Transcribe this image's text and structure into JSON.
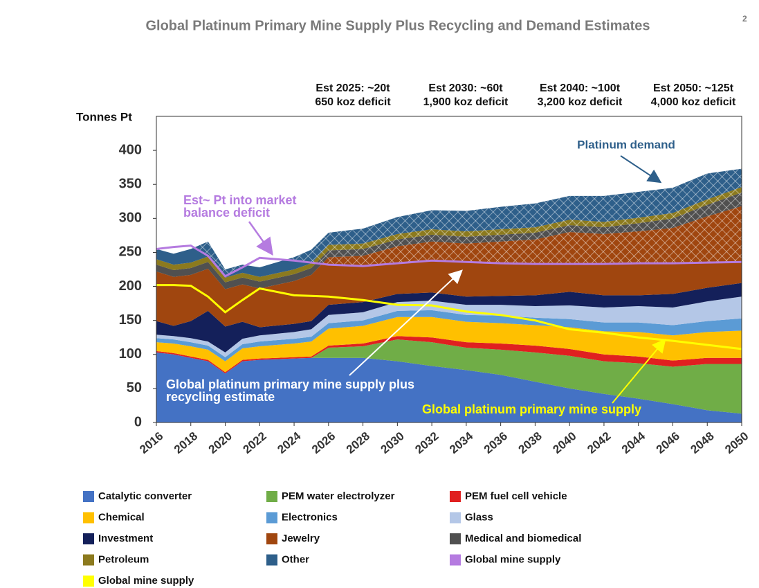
{
  "chart_data": {
    "type": "stacked_area",
    "title": "Global Platinum Primary Mine Supply Plus Recycling and Demand Estimates",
    "title_superscript": "2",
    "y_axis_label": "Tonnes Pt",
    "x": [
      2016,
      2017,
      2018,
      2019,
      2020,
      2021,
      2022,
      2024,
      2025,
      2026,
      2028,
      2030,
      2032,
      2034,
      2036,
      2038,
      2040,
      2042,
      2044,
      2046,
      2048,
      2050
    ],
    "xlim": [
      2016,
      2050
    ],
    "xticks": [
      2016,
      2018,
      2020,
      2022,
      2024,
      2026,
      2028,
      2030,
      2032,
      2034,
      2036,
      2038,
      2040,
      2042,
      2044,
      2046,
      2048,
      2050
    ],
    "ylim": [
      0,
      450
    ],
    "yticks": [
      0,
      50,
      100,
      150,
      200,
      250,
      300,
      350,
      400
    ],
    "series": [
      {
        "name": "Catalytic converter",
        "color": "#4472c4",
        "values": [
          103,
          100,
          95,
          90,
          72,
          90,
          92,
          94,
          95,
          95,
          95,
          90,
          83,
          77,
          70,
          60,
          50,
          42,
          35,
          27,
          18,
          13
        ]
      },
      {
        "name": "PEM water electrolyzer",
        "color": "#70ad47",
        "values": [
          0,
          0,
          0,
          0,
          0,
          0,
          0,
          0,
          0,
          15,
          17,
          32,
          35,
          33,
          37,
          43,
          48,
          48,
          52,
          55,
          68,
          73
        ]
      },
      {
        "name": "PEM fuel cell vehicle",
        "color": "#e02020",
        "values": [
          2,
          2,
          2,
          2,
          2,
          2,
          2,
          2,
          2,
          3,
          4,
          5,
          7,
          8,
          9,
          10,
          10,
          10,
          10,
          9,
          9,
          9
        ]
      },
      {
        "name": "Chemical",
        "color": "#ffc000",
        "values": [
          13,
          14,
          15,
          15,
          16,
          17,
          18,
          20,
          22,
          25,
          26,
          28,
          30,
          30,
          30,
          30,
          32,
          34,
          36,
          37,
          38,
          40
        ]
      },
      {
        "name": "Electronics",
        "color": "#5b9bd5",
        "values": [
          6,
          6,
          6,
          6,
          6,
          6,
          7,
          7,
          7,
          8,
          8,
          9,
          10,
          10,
          11,
          11,
          12,
          13,
          14,
          15,
          16,
          18
        ]
      },
      {
        "name": "Glass",
        "color": "#b4c7e7",
        "values": [
          5,
          5,
          6,
          6,
          7,
          8,
          9,
          10,
          11,
          12,
          12,
          13,
          14,
          15,
          16,
          17,
          20,
          22,
          24,
          26,
          29,
          32
        ]
      },
      {
        "name": "Investment",
        "color": "#14205a",
        "values": [
          20,
          15,
          25,
          45,
          38,
          25,
          12,
          12,
          12,
          15,
          15,
          12,
          12,
          12,
          13,
          16,
          20,
          18,
          16,
          20,
          20,
          20
        ]
      },
      {
        "name": "Jewelry",
        "color": "#a0460f",
        "values": [
          73,
          72,
          68,
          62,
          55,
          55,
          57,
          63,
          68,
          70,
          68,
          70,
          75,
          78,
          80,
          82,
          88,
          90,
          94,
          97,
          105,
          113
        ]
      },
      {
        "name": "Medical and biomedical",
        "color": "#505050",
        "values": [
          10,
          10,
          10,
          10,
          10,
          10,
          10,
          10,
          10,
          10,
          10,
          10,
          10,
          10,
          10,
          10,
          10,
          10,
          12,
          14,
          17,
          20
        ]
      },
      {
        "name": "Petroleum",
        "color": "#8c7a1e",
        "values": [
          8,
          8,
          8,
          8,
          7,
          7,
          7,
          7,
          7,
          8,
          8,
          8,
          8,
          8,
          8,
          8,
          8,
          8,
          8,
          8,
          8,
          8
        ]
      },
      {
        "name": "Other",
        "color": "#2e5f8a",
        "values": [
          15,
          16,
          20,
          22,
          12,
          12,
          14,
          18,
          20,
          18,
          22,
          25,
          28,
          30,
          33,
          35,
          35,
          38,
          38,
          37,
          38,
          27
        ]
      },
      {
        "name": "Global mine supply",
        "color": "#b57be0",
        "kind": "line",
        "values": [
          255,
          258,
          260,
          245,
          215,
          228,
          242,
          238,
          235,
          232,
          230,
          234,
          238,
          236,
          234,
          233,
          233,
          233,
          234,
          234,
          235,
          236
        ]
      },
      {
        "name": "Global mine supply",
        "color": "#ffff00",
        "kind": "line",
        "values": [
          202,
          202,
          201,
          185,
          162,
          180,
          197,
          187,
          186,
          185,
          180,
          173,
          172,
          163,
          158,
          150,
          137,
          132,
          125,
          120,
          114,
          108
        ]
      }
    ],
    "top_annotations": [
      [
        "Est 2025: ~20t",
        "650 koz deficit"
      ],
      [
        "Est 2030: ~60t",
        "1,900 koz deficit"
      ],
      [
        "Est 2040: ~100t",
        "3,200 koz deficit"
      ],
      [
        "Est 2050: ~125t",
        "4,000 koz deficit"
      ]
    ],
    "demand_label": "Platinum demand",
    "deficit_label": [
      "Est~ Pt into market",
      "balance deficit"
    ],
    "recycling_label": [
      "Global platinum primary mine supply plus",
      "recycling estimate"
    ],
    "primary_label": "Global platinum primary mine supply"
  }
}
